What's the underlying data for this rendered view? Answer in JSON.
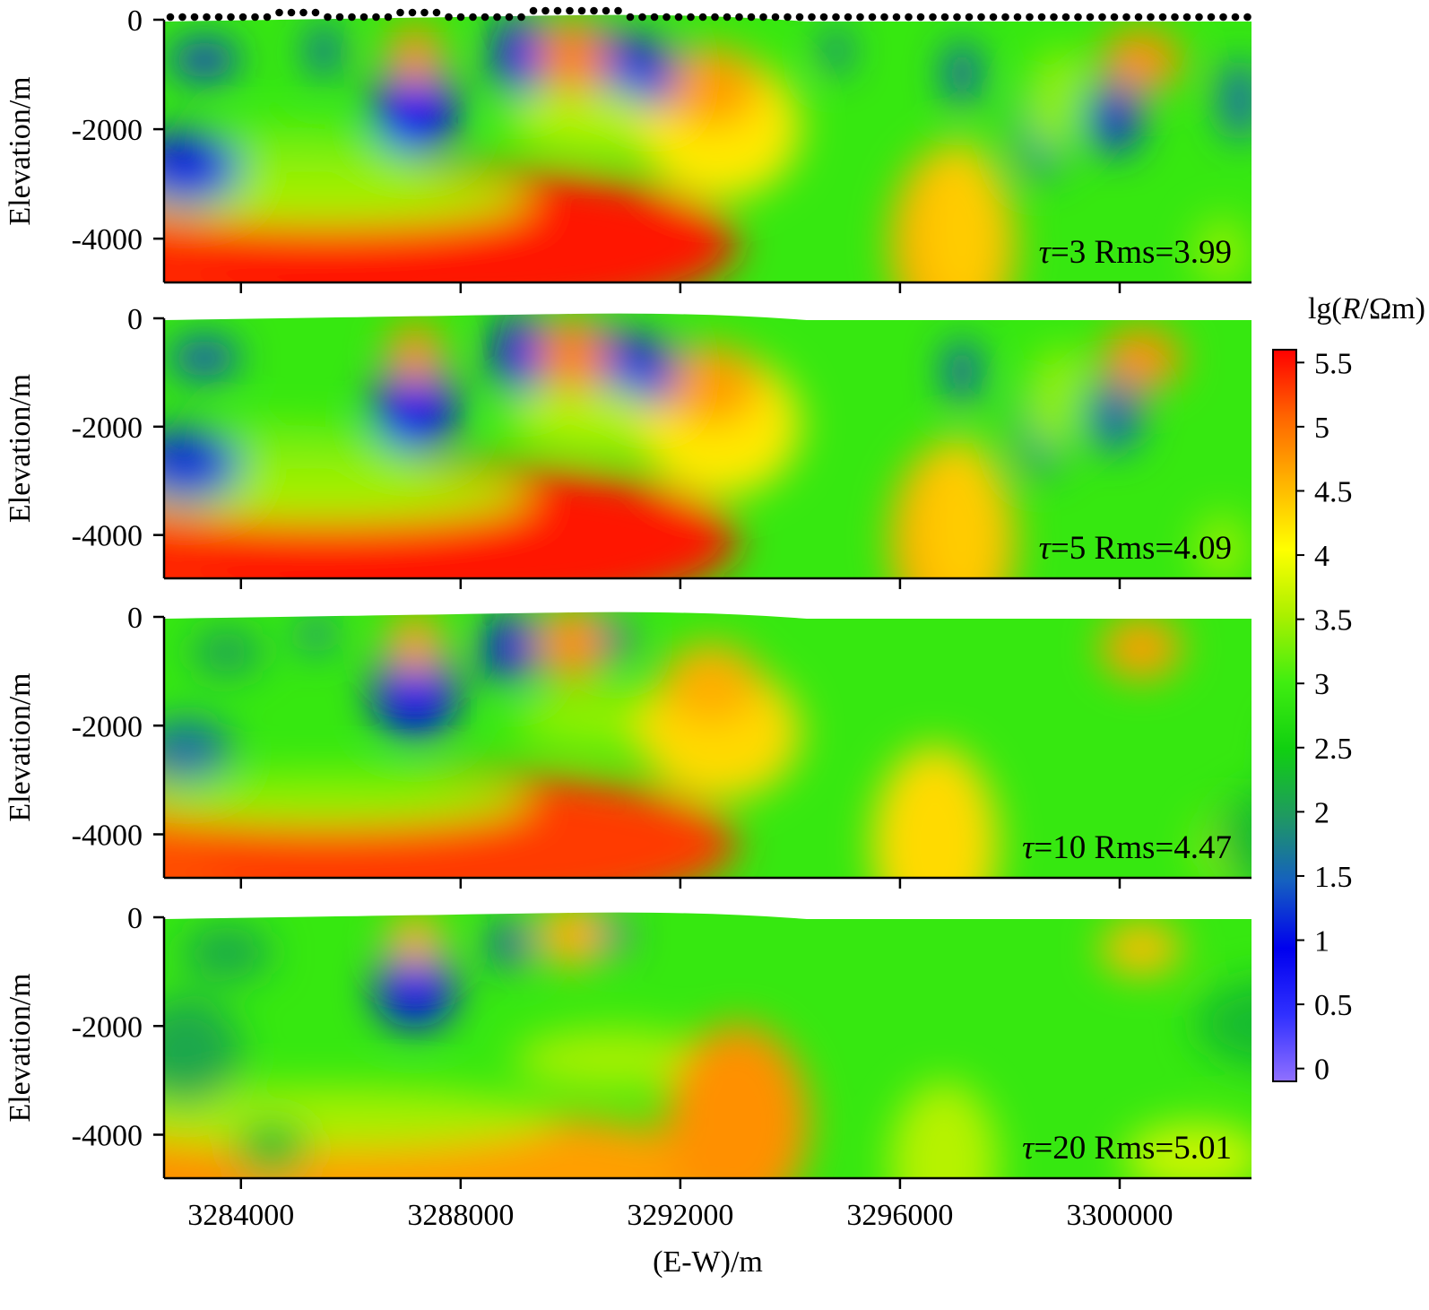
{
  "chart_data": [
    {
      "type": "heatmap",
      "annotation": {
        "tau_symbol": "τ",
        "tau_value": "=3",
        "rms": "Rms=3.99"
      },
      "ylabel": "Elevation/m",
      "ylim": [
        -4800,
        0
      ],
      "yticks": [
        "0",
        "-2000",
        "-4000"
      ],
      "xlim": [
        3282600,
        3302400
      ],
      "show_electrodes": true
    },
    {
      "type": "heatmap",
      "annotation": {
        "tau_symbol": "τ",
        "tau_value": "=5",
        "rms": "Rms=4.09"
      },
      "ylabel": "Elevation/m",
      "ylim": [
        -4800,
        0
      ],
      "yticks": [
        "0",
        "-2000",
        "-4000"
      ],
      "xlim": [
        3282600,
        3302400
      ],
      "show_electrodes": false
    },
    {
      "type": "heatmap",
      "annotation": {
        "tau_symbol": "τ",
        "tau_value": "=10",
        "rms": "Rms=4.47"
      },
      "ylabel": "Elevation/m",
      "ylim": [
        -4800,
        0
      ],
      "yticks": [
        "0",
        "-2000",
        "-4000"
      ],
      "xlim": [
        3282600,
        3302400
      ],
      "show_electrodes": false
    },
    {
      "type": "heatmap",
      "annotation": {
        "tau_symbol": "τ",
        "tau_value": "=20",
        "rms": "Rms=5.01"
      },
      "ylabel": "Elevation/m",
      "ylim": [
        -4800,
        0
      ],
      "yticks": [
        "0",
        "-2000",
        "-4000"
      ],
      "xlim": [
        3282600,
        3302400
      ],
      "show_electrodes": false
    }
  ],
  "xaxis": {
    "label": "(E-W)/m",
    "ticks": [
      3284000,
      3288000,
      3292000,
      3296000,
      3300000
    ],
    "tick_labels": [
      "3284000",
      "3288000",
      "3292000",
      "3296000",
      "3300000"
    ]
  },
  "colorbar": {
    "title_prefix": "lg(",
    "title_var": "R",
    "title_suffix": "/Ωm)",
    "ticks": [
      "5.5",
      "5",
      "4.5",
      "4",
      "3.5",
      "3",
      "2.5",
      "2",
      "1.5",
      "1",
      "0.5",
      "0"
    ],
    "range": [
      -0.1,
      5.6
    ],
    "colors": [
      "#9070ff",
      "#3030ff",
      "#0000ee",
      "#1560c0",
      "#1f9a60",
      "#10d010",
      "#40ee10",
      "#aaf000",
      "#ffff00",
      "#ffb400",
      "#ff6400",
      "#ff0000"
    ]
  }
}
